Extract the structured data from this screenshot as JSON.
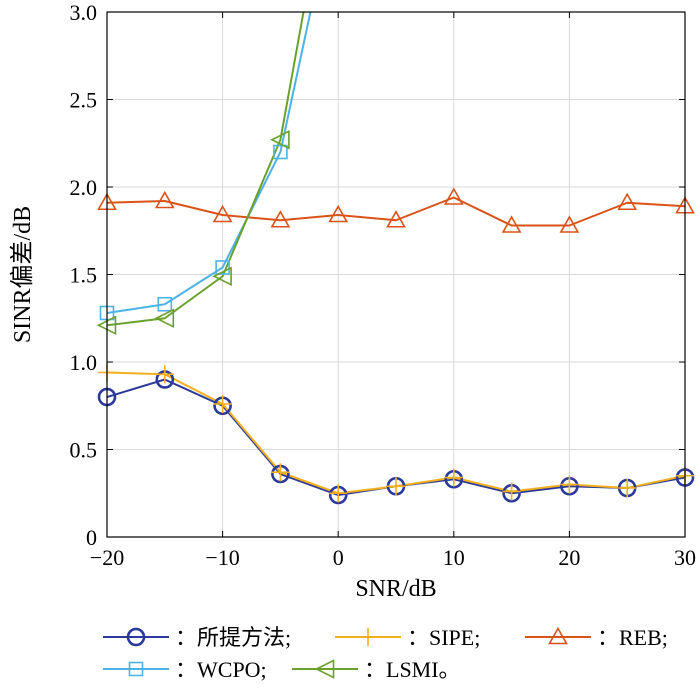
{
  "chart_data": {
    "type": "line",
    "xlabel": "SNR/dB",
    "ylabel": "SINR偏差/dB",
    "xlim": [
      -20,
      30
    ],
    "ylim": [
      0,
      3.0
    ],
    "x_ticks": [
      -20,
      -10,
      0,
      10,
      20,
      30
    ],
    "x_tick_labels": [
      "−20",
      "−10",
      "0",
      "10",
      "20",
      "30"
    ],
    "y_ticks": [
      0,
      0.5,
      1.0,
      1.5,
      2.0,
      2.5,
      3.0
    ],
    "y_tick_labels": [
      "0",
      "0.5",
      "1.0",
      "1.5",
      "2.0",
      "2.5",
      "3.0"
    ],
    "grid": true,
    "legend_position": "bottom",
    "series": [
      {
        "name": "：所提方法;",
        "color": "#2b3a9a",
        "marker": "circle",
        "x": [
          -20,
          -15,
          -10,
          -5,
          0,
          5,
          10,
          15,
          20,
          25,
          30
        ],
        "y": [
          0.8,
          0.9,
          0.75,
          0.36,
          0.24,
          0.29,
          0.33,
          0.25,
          0.29,
          0.28,
          0.34
        ]
      },
      {
        "name": "：SIPE;",
        "color": "#f2b01e",
        "marker": "plus",
        "x": [
          -20,
          -15,
          -10,
          -5,
          0,
          5,
          10,
          15,
          20,
          25,
          30
        ],
        "y": [
          0.94,
          0.93,
          0.76,
          0.37,
          0.25,
          0.29,
          0.34,
          0.26,
          0.3,
          0.28,
          0.35
        ]
      },
      {
        "name": "：REB;",
        "color": "#d95319",
        "marker": "triangle-up",
        "x": [
          -20,
          -15,
          -10,
          -5,
          0,
          5,
          10,
          15,
          20,
          25,
          30
        ],
        "y": [
          1.91,
          1.92,
          1.84,
          1.81,
          1.84,
          1.81,
          1.94,
          1.78,
          1.78,
          1.91,
          1.89
        ]
      },
      {
        "name": "：WCPO;",
        "color": "#4db3e6",
        "marker": "square",
        "x": [
          -20,
          -15,
          -10,
          -5,
          -2.4
        ],
        "y": [
          1.28,
          1.33,
          1.54,
          2.2,
          3.0
        ]
      },
      {
        "name": "：LSMI。",
        "color": "#6aa12c",
        "marker": "triangle-left",
        "x": [
          -20,
          -15,
          -10,
          -5,
          -3.0
        ],
        "y": [
          1.21,
          1.25,
          1.49,
          2.27,
          3.0
        ]
      }
    ],
    "marker_x": [
      -20,
      -15,
      -10,
      -5,
      0,
      5,
      10,
      15,
      20,
      25,
      30
    ]
  }
}
